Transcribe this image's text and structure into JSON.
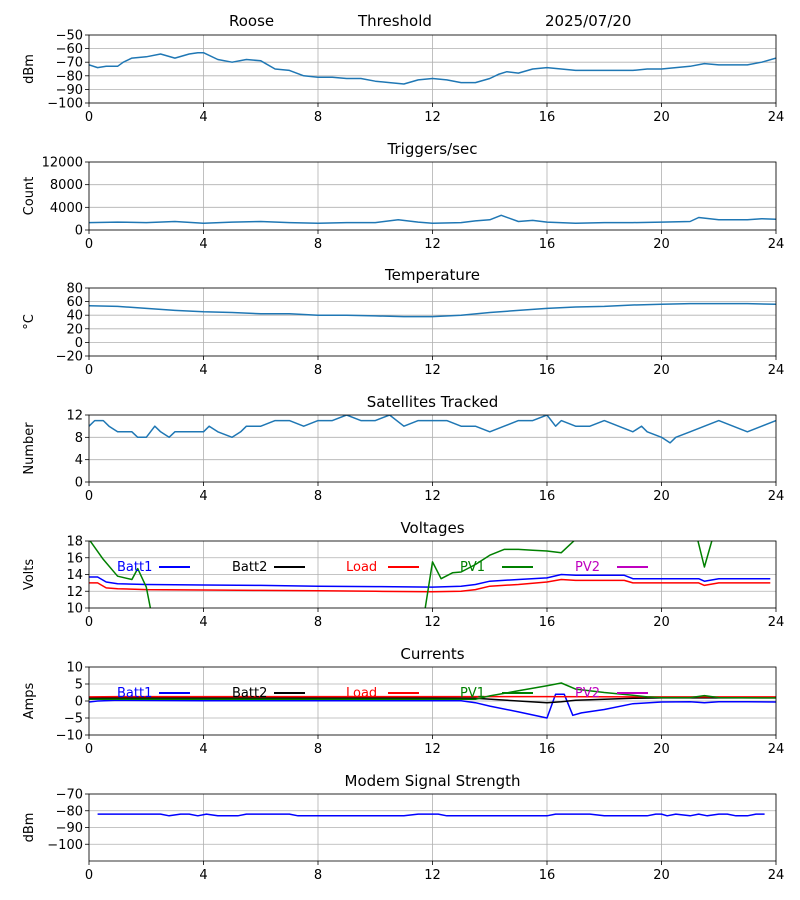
{
  "header": {
    "station": "Roose",
    "mode": "Threshold",
    "date": "2025/07/20"
  },
  "colors": {
    "default_line": "#1f77b4",
    "batt1": "#0000ff",
    "batt2": "#000000",
    "load": "#ff0000",
    "pv1": "#008000",
    "pv2": "#bf00bf",
    "grid": "#b0b0b0"
  },
  "chart_data": [
    {
      "id": "signal",
      "type": "line",
      "title": "",
      "xlabel": "",
      "ylabel": "dBm",
      "xlim": [
        0,
        24
      ],
      "ylim": [
        -100,
        -50
      ],
      "xticks": [
        0,
        4,
        8,
        12,
        16,
        20,
        24
      ],
      "yticks": [
        -100,
        -90,
        -80,
        -70,
        -60,
        -50
      ],
      "grid": true,
      "legend": "none",
      "series": [
        {
          "color": "#1f77b4",
          "x": [
            0,
            0.3,
            0.6,
            1.0,
            1.2,
            1.5,
            2.0,
            2.5,
            3.0,
            3.5,
            3.8,
            4.0,
            4.5,
            5.0,
            5.5,
            6.0,
            6.5,
            7.0,
            7.5,
            8.0,
            8.5,
            9.0,
            9.5,
            10.0,
            10.5,
            11.0,
            11.5,
            12.0,
            12.5,
            13.0,
            13.5,
            14.0,
            14.3,
            14.6,
            15.0,
            15.5,
            16.0,
            16.5,
            17.0,
            17.5,
            18.0,
            19.0,
            19.5,
            20.0,
            20.5,
            21.0,
            21.5,
            22.0,
            22.5,
            23.0,
            23.5,
            24.0
          ],
          "y": [
            -72,
            -74,
            -73,
            -73,
            -70,
            -67,
            -66,
            -64,
            -67,
            -64,
            -63,
            -63,
            -68,
            -70,
            -68,
            -69,
            -75,
            -76,
            -80,
            -81,
            -81,
            -82,
            -82,
            -84,
            -85,
            -86,
            -83,
            -82,
            -83,
            -85,
            -85,
            -82,
            -79,
            -77,
            -78,
            -75,
            -74,
            -75,
            -76,
            -76,
            -76,
            -76,
            -75,
            -75,
            -74,
            -73,
            -71,
            -72,
            -72,
            -72,
            -70,
            -67
          ]
        }
      ]
    },
    {
      "id": "triggers",
      "type": "line",
      "title": "Triggers/sec",
      "xlabel": "",
      "ylabel": "Count",
      "xlim": [
        0,
        24
      ],
      "ylim": [
        0,
        12000
      ],
      "xticks": [
        0,
        4,
        8,
        12,
        16,
        20,
        24
      ],
      "yticks": [
        0,
        4000,
        8000,
        12000
      ],
      "grid": true,
      "legend": "none",
      "series": [
        {
          "color": "#1f77b4",
          "x": [
            0,
            1,
            2,
            3,
            4,
            5,
            6,
            7,
            8,
            9,
            10,
            10.8,
            11.5,
            12,
            13,
            13.5,
            14,
            14.4,
            15,
            15.5,
            16,
            17,
            18,
            19,
            20,
            21,
            21.3,
            22,
            23,
            23.5,
            24
          ],
          "y": [
            1300,
            1400,
            1300,
            1500,
            1200,
            1400,
            1500,
            1300,
            1200,
            1300,
            1300,
            1800,
            1400,
            1200,
            1300,
            1600,
            1800,
            2600,
            1500,
            1700,
            1400,
            1200,
            1300,
            1300,
            1400,
            1500,
            2200,
            1800,
            1800,
            2000,
            1900
          ]
        }
      ]
    },
    {
      "id": "temperature",
      "type": "line",
      "title": "Temperature",
      "xlabel": "",
      "ylabel": "°C",
      "xlim": [
        0,
        24
      ],
      "ylim": [
        -20,
        80
      ],
      "xticks": [
        0,
        4,
        8,
        12,
        16,
        20,
        24
      ],
      "yticks": [
        -20,
        0,
        20,
        40,
        60,
        80
      ],
      "grid": true,
      "legend": "none",
      "series": [
        {
          "color": "#1f77b4",
          "x": [
            0,
            1,
            2,
            3,
            4,
            5,
            6,
            7,
            8,
            9,
            10,
            11,
            12,
            13,
            14,
            15,
            16,
            17,
            18,
            19,
            20,
            21,
            22,
            23,
            24
          ],
          "y": [
            54,
            53,
            50,
            47,
            45,
            44,
            42,
            42,
            40,
            40,
            39,
            38,
            38,
            40,
            44,
            47,
            50,
            52,
            53,
            55,
            56,
            57,
            57,
            57,
            56
          ]
        }
      ]
    },
    {
      "id": "satellites",
      "type": "line",
      "title": "Satellites Tracked",
      "xlabel": "",
      "ylabel": "Number",
      "xlim": [
        0,
        24
      ],
      "ylim": [
        0,
        12
      ],
      "xticks": [
        0,
        4,
        8,
        12,
        16,
        20,
        24
      ],
      "yticks": [
        0,
        4,
        8,
        12
      ],
      "grid": true,
      "legend": "none",
      "series": [
        {
          "color": "#1f77b4",
          "x": [
            0,
            0.2,
            0.5,
            0.7,
            1.0,
            1.5,
            1.7,
            2.0,
            2.3,
            2.5,
            2.8,
            3.0,
            3.5,
            4.0,
            4.2,
            4.5,
            5.0,
            5.3,
            5.5,
            6.0,
            6.5,
            7.0,
            7.5,
            8.0,
            8.5,
            9.0,
            9.5,
            10.0,
            10.5,
            11.0,
            11.5,
            12.0,
            12.5,
            13.0,
            13.5,
            14.0,
            14.5,
            15.0,
            15.5,
            16.0,
            16.3,
            16.5,
            17.0,
            17.5,
            18.0,
            18.5,
            19.0,
            19.3,
            19.5,
            20.0,
            20.3,
            20.5,
            21.0,
            21.5,
            22.0,
            22.5,
            23.0,
            23.5,
            24.0
          ],
          "y": [
            10,
            11,
            11,
            10,
            9,
            9,
            8,
            8,
            10,
            9,
            8,
            9,
            9,
            9,
            10,
            9,
            8,
            9,
            10,
            10,
            11,
            11,
            10,
            11,
            11,
            12,
            11,
            11,
            12,
            10,
            11,
            11,
            11,
            10,
            10,
            9,
            10,
            11,
            11,
            12,
            10,
            11,
            10,
            10,
            11,
            10,
            9,
            10,
            9,
            8,
            7,
            8,
            9,
            10,
            11,
            10,
            9,
            10,
            11
          ]
        }
      ]
    },
    {
      "id": "voltages",
      "type": "line",
      "title": "Voltages",
      "xlabel": "",
      "ylabel": "Volts",
      "xlim": [
        0,
        24
      ],
      "ylim": [
        10,
        18
      ],
      "xticks": [
        0,
        4,
        8,
        12,
        16,
        20,
        24
      ],
      "yticks": [
        10,
        12,
        14,
        16,
        18
      ],
      "grid": true,
      "legend": "top",
      "series": [
        {
          "name": "Batt1",
          "color": "#0000ff",
          "x": [
            0,
            0.3,
            0.6,
            1.0,
            2.0,
            4.0,
            6.0,
            8.0,
            10.0,
            12.0,
            13.0,
            13.5,
            14.0,
            15.0,
            16.0,
            16.5,
            17.0,
            18.0,
            18.7,
            19.0,
            20.0,
            21.0,
            21.3,
            21.5,
            22.0,
            23.0,
            23.8
          ],
          "y": [
            13.7,
            13.7,
            13.1,
            12.9,
            12.8,
            12.75,
            12.7,
            12.6,
            12.55,
            12.5,
            12.6,
            12.8,
            13.2,
            13.4,
            13.6,
            14.0,
            13.9,
            13.9,
            13.9,
            13.5,
            13.5,
            13.5,
            13.5,
            13.2,
            13.5,
            13.5,
            13.5
          ]
        },
        {
          "name": "Batt2",
          "color": "#000000",
          "x": [],
          "y": []
        },
        {
          "name": "Load",
          "color": "#ff0000",
          "x": [
            0,
            0.3,
            0.6,
            1.0,
            2.0,
            4.0,
            6.0,
            8.0,
            10.0,
            12.0,
            13.0,
            13.5,
            14.0,
            15.0,
            16.0,
            16.5,
            17.0,
            18.0,
            18.7,
            19.0,
            20.0,
            21.0,
            21.3,
            21.5,
            22.0,
            23.0,
            23.8
          ],
          "y": [
            13.0,
            13.0,
            12.4,
            12.3,
            12.2,
            12.15,
            12.1,
            12.05,
            12.0,
            11.95,
            12.0,
            12.2,
            12.6,
            12.8,
            13.1,
            13.4,
            13.3,
            13.3,
            13.3,
            13.0,
            13.0,
            13.0,
            13.0,
            12.7,
            13.0,
            13.0,
            13.0
          ]
        },
        {
          "name": "PV1",
          "color": "#008000",
          "x": [
            0,
            0.5,
            1.0,
            1.5,
            1.7,
            2.0,
            2.2,
            11.7,
            12.0,
            12.3,
            12.7,
            13.0,
            13.5,
            14.0,
            14.5,
            15.0,
            15.5,
            16.0,
            16.5,
            17.0,
            17.3,
            21.2,
            21.5,
            21.8,
            22.0
          ],
          "y": [
            18.2,
            15.8,
            13.8,
            13.4,
            14.7,
            12.5,
            9.0,
            9.0,
            15.5,
            13.5,
            14.2,
            14.3,
            15.2,
            16.3,
            17.0,
            17.0,
            16.9,
            16.8,
            16.6,
            18.2,
            19.0,
            19.0,
            14.9,
            18.5,
            19.0
          ]
        },
        {
          "name": "PV2",
          "color": "#bf00bf",
          "x": [],
          "y": []
        }
      ]
    },
    {
      "id": "currents",
      "type": "line",
      "title": "Currents",
      "xlabel": "",
      "ylabel": "Amps",
      "xlim": [
        0,
        24
      ],
      "ylim": [
        -10,
        10
      ],
      "xticks": [
        0,
        4,
        8,
        12,
        16,
        20,
        24
      ],
      "yticks": [
        -10,
        -5,
        0,
        5,
        10
      ],
      "grid": true,
      "legend": "top",
      "series": [
        {
          "name": "Batt1",
          "color": "#0000ff",
          "x": [
            0,
            0.3,
            1.0,
            4.0,
            8.0,
            12.0,
            13.0,
            13.5,
            14.0,
            15.0,
            16.0,
            16.3,
            16.6,
            16.9,
            17.2,
            18.0,
            19.0,
            20.0,
            21.0,
            21.5,
            22.0,
            23.0,
            24.0
          ],
          "y": [
            -0.3,
            0.0,
            0.2,
            0.1,
            0.1,
            0.1,
            0.1,
            -0.5,
            -1.5,
            -3.2,
            -5.0,
            2.0,
            2.0,
            -4.2,
            -3.5,
            -2.5,
            -0.8,
            -0.3,
            -0.2,
            -0.5,
            -0.2,
            -0.2,
            -0.3
          ]
        },
        {
          "name": "Batt2",
          "color": "#000000",
          "x": [
            0,
            4,
            8,
            12,
            13.5,
            15.0,
            16.0,
            16.5,
            17.0,
            18.0,
            19.0,
            20.0,
            24.0
          ],
          "y": [
            0.9,
            0.9,
            0.9,
            0.9,
            0.8,
            0.0,
            -0.5,
            -0.2,
            0.2,
            0.5,
            0.8,
            0.9,
            0.9
          ]
        },
        {
          "name": "Load",
          "color": "#ff0000",
          "x": [
            0,
            1,
            4,
            8,
            12,
            16,
            20,
            24
          ],
          "y": [
            1.2,
            1.3,
            1.3,
            1.3,
            1.3,
            1.3,
            1.2,
            1.2
          ]
        },
        {
          "name": "PV1",
          "color": "#008000",
          "x": [
            0,
            4,
            8,
            12,
            13.5,
            14.0,
            15.0,
            16.0,
            16.5,
            17.0,
            18.0,
            19.0,
            19.5,
            20.0,
            21.0,
            21.5,
            22.0,
            24.0
          ],
          "y": [
            0.5,
            0.5,
            0.5,
            0.5,
            0.5,
            1.5,
            3.0,
            4.5,
            5.3,
            3.5,
            2.5,
            1.7,
            1.2,
            1.0,
            1.0,
            1.6,
            1.0,
            0.9
          ]
        },
        {
          "name": "PV2",
          "color": "#bf00bf",
          "x": [],
          "y": []
        }
      ]
    },
    {
      "id": "modem",
      "type": "line",
      "title": "Modem Signal Strength",
      "xlabel": "",
      "ylabel": "dBm",
      "xlim": [
        0,
        24
      ],
      "ylim": [
        -110,
        -70
      ],
      "xticks": [
        0,
        4,
        8,
        12,
        16,
        20,
        24
      ],
      "yticks": [
        -100,
        -90,
        -80,
        -70
      ],
      "grid": true,
      "legend": "none",
      "series": [
        {
          "color": "#0000ff",
          "x": [
            0.3,
            1.0,
            2.0,
            2.5,
            2.8,
            3.2,
            3.5,
            3.8,
            4.1,
            4.5,
            4.8,
            5.2,
            5.5,
            6.0,
            6.5,
            7.0,
            7.3,
            7.6,
            8.0,
            9.0,
            10.0,
            10.5,
            11.0,
            11.5,
            11.8,
            12.2,
            12.5,
            13.0,
            14.0,
            15.0,
            16.0,
            16.3,
            16.6,
            17.0,
            17.5,
            18.0,
            19.0,
            19.5,
            19.8,
            20.0,
            20.2,
            20.5,
            21.0,
            21.3,
            21.6,
            22.0,
            22.3,
            22.6,
            23.0,
            23.3,
            23.6
          ],
          "y": [
            -82,
            -82,
            -82,
            -82,
            -83,
            -82,
            -82,
            -83,
            -82,
            -83,
            -83,
            -83,
            -82,
            -82,
            -82,
            -82,
            -83,
            -83,
            -83,
            -83,
            -83,
            -83,
            -83,
            -82,
            -82,
            -82,
            -83,
            -83,
            -83,
            -83,
            -83,
            -82,
            -82,
            -82,
            -82,
            -83,
            -83,
            -83,
            -82,
            -82,
            -83,
            -82,
            -83,
            -82,
            -83,
            -82,
            -82,
            -83,
            -83,
            -82,
            -82
          ]
        }
      ]
    }
  ]
}
